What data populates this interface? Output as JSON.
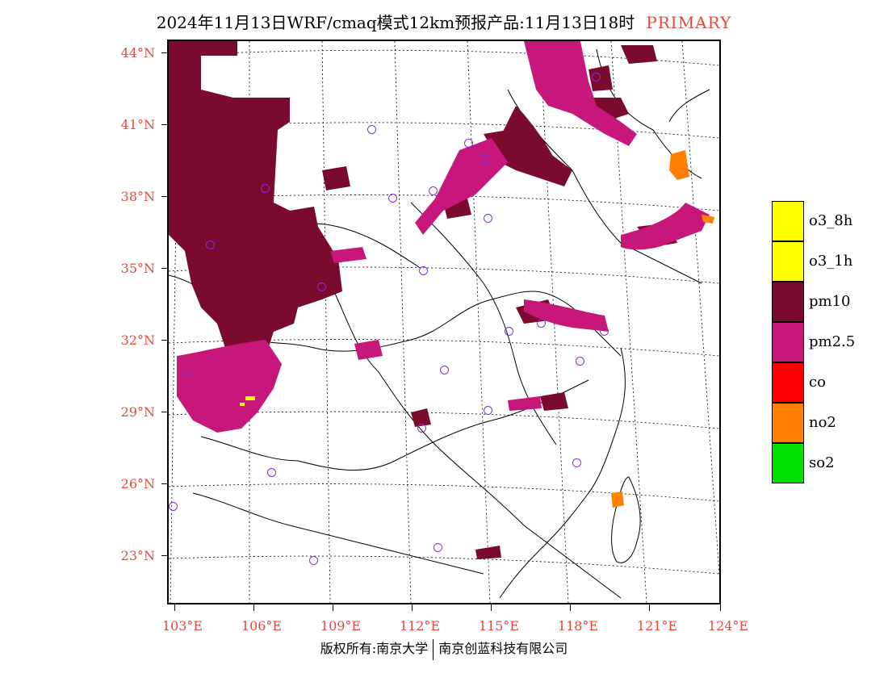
{
  "title": {
    "main": "2024年11月13日WRF/cmaq模式12km预报产品:11月13日18时",
    "tag": "PRIMARY"
  },
  "axes": {
    "lat_labels": [
      "44°N",
      "41°N",
      "38°N",
      "35°N",
      "32°N",
      "29°N",
      "26°N",
      "23°N"
    ],
    "lon_labels": [
      "103°E",
      "106°E",
      "109°E",
      "112°E",
      "115°E",
      "118°E",
      "121°E",
      "124°E"
    ]
  },
  "legend": [
    {
      "label": "o3_8h",
      "color": "#ffff00"
    },
    {
      "label": "o3_1h",
      "color": "#ffff00"
    },
    {
      "label": "pm10",
      "color": "#7a0a2e"
    },
    {
      "label": "pm2.5",
      "color": "#c8177a"
    },
    {
      "label": "co",
      "color": "#ff0000"
    },
    {
      "label": "no2",
      "color": "#ff7f00"
    },
    {
      "label": "so2",
      "color": "#00e000"
    }
  ],
  "footer": {
    "left": "版权所有:南京大学",
    "right": "南京创蓝科技有限公司"
  },
  "colors": {
    "pm10": "#7a0a2e",
    "pm25": "#c8177a",
    "no2": "#ff7f00",
    "o3": "#ffff00",
    "station": "#8a2be2",
    "label": "#e8483a"
  }
}
